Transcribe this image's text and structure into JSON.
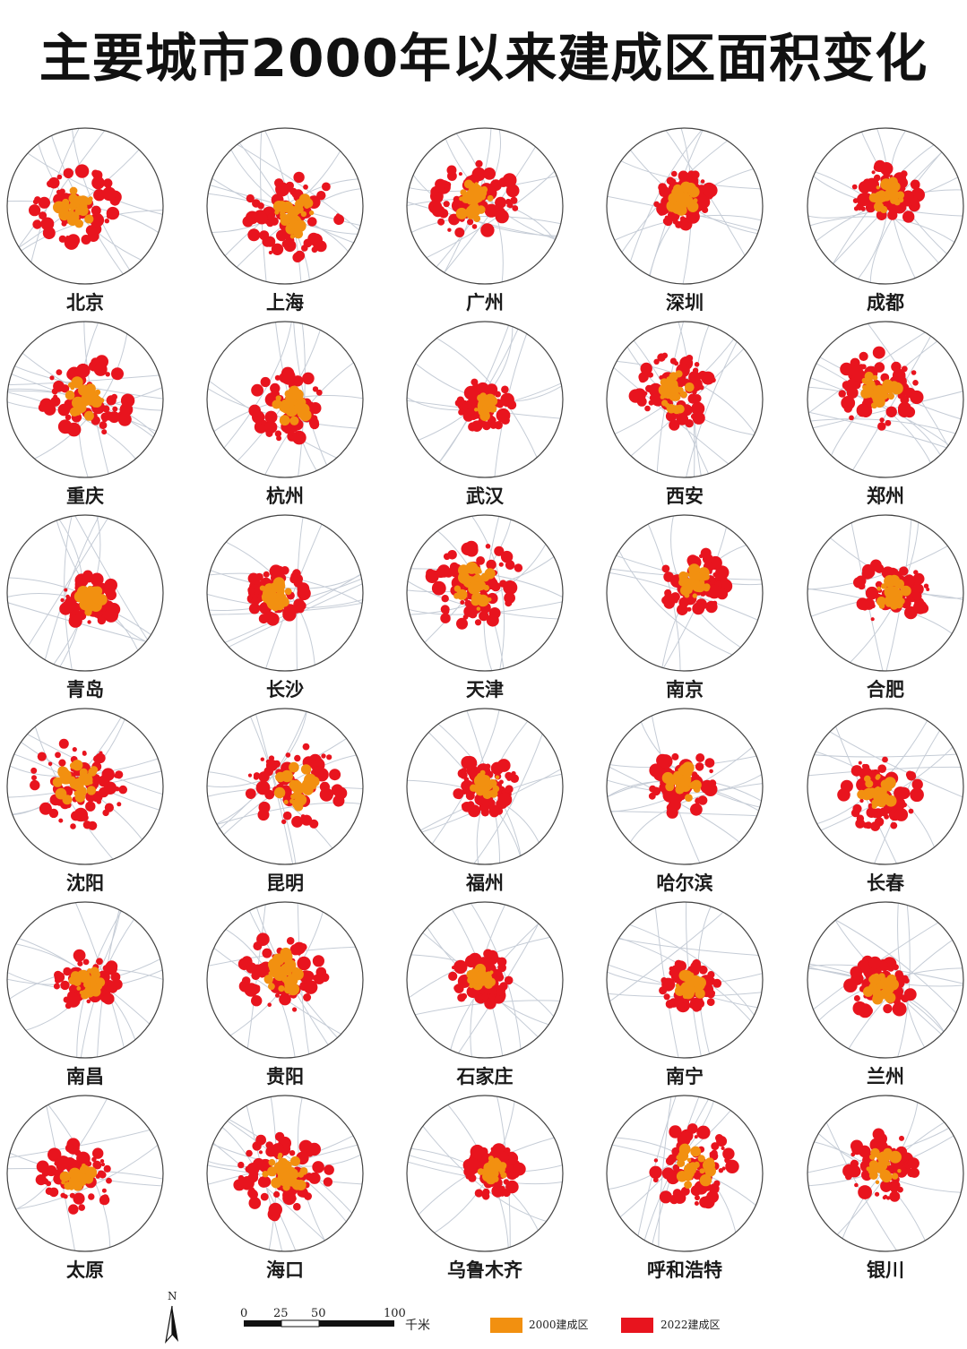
{
  "title": "主要城市2000年以来建成区面积变化",
  "colors": {
    "built_2000": "#f29010",
    "built_2022": "#e8141e",
    "roads": "#c5ccd6",
    "circle": "#444444"
  },
  "cities": [
    "北京",
    "上海",
    "广州",
    "深圳",
    "成都",
    "重庆",
    "杭州",
    "武汉",
    "西安",
    "郑州",
    "青岛",
    "长沙",
    "天津",
    "南京",
    "合肥",
    "沈阳",
    "昆明",
    "福州",
    "哈尔滨",
    "长春",
    "南昌",
    "贵阳",
    "石家庄",
    "南宁",
    "兰州",
    "太原",
    "海口",
    "乌鲁木齐",
    "呼和浩特",
    "银川"
  ],
  "legend": {
    "north": "N",
    "scale_ticks": [
      "0",
      "25",
      "50",
      "100"
    ],
    "scale_unit": "千米",
    "items": [
      {
        "label": "2000建成区",
        "color": "#f29010"
      },
      {
        "label": "2022建成区",
        "color": "#e8141e"
      }
    ]
  }
}
